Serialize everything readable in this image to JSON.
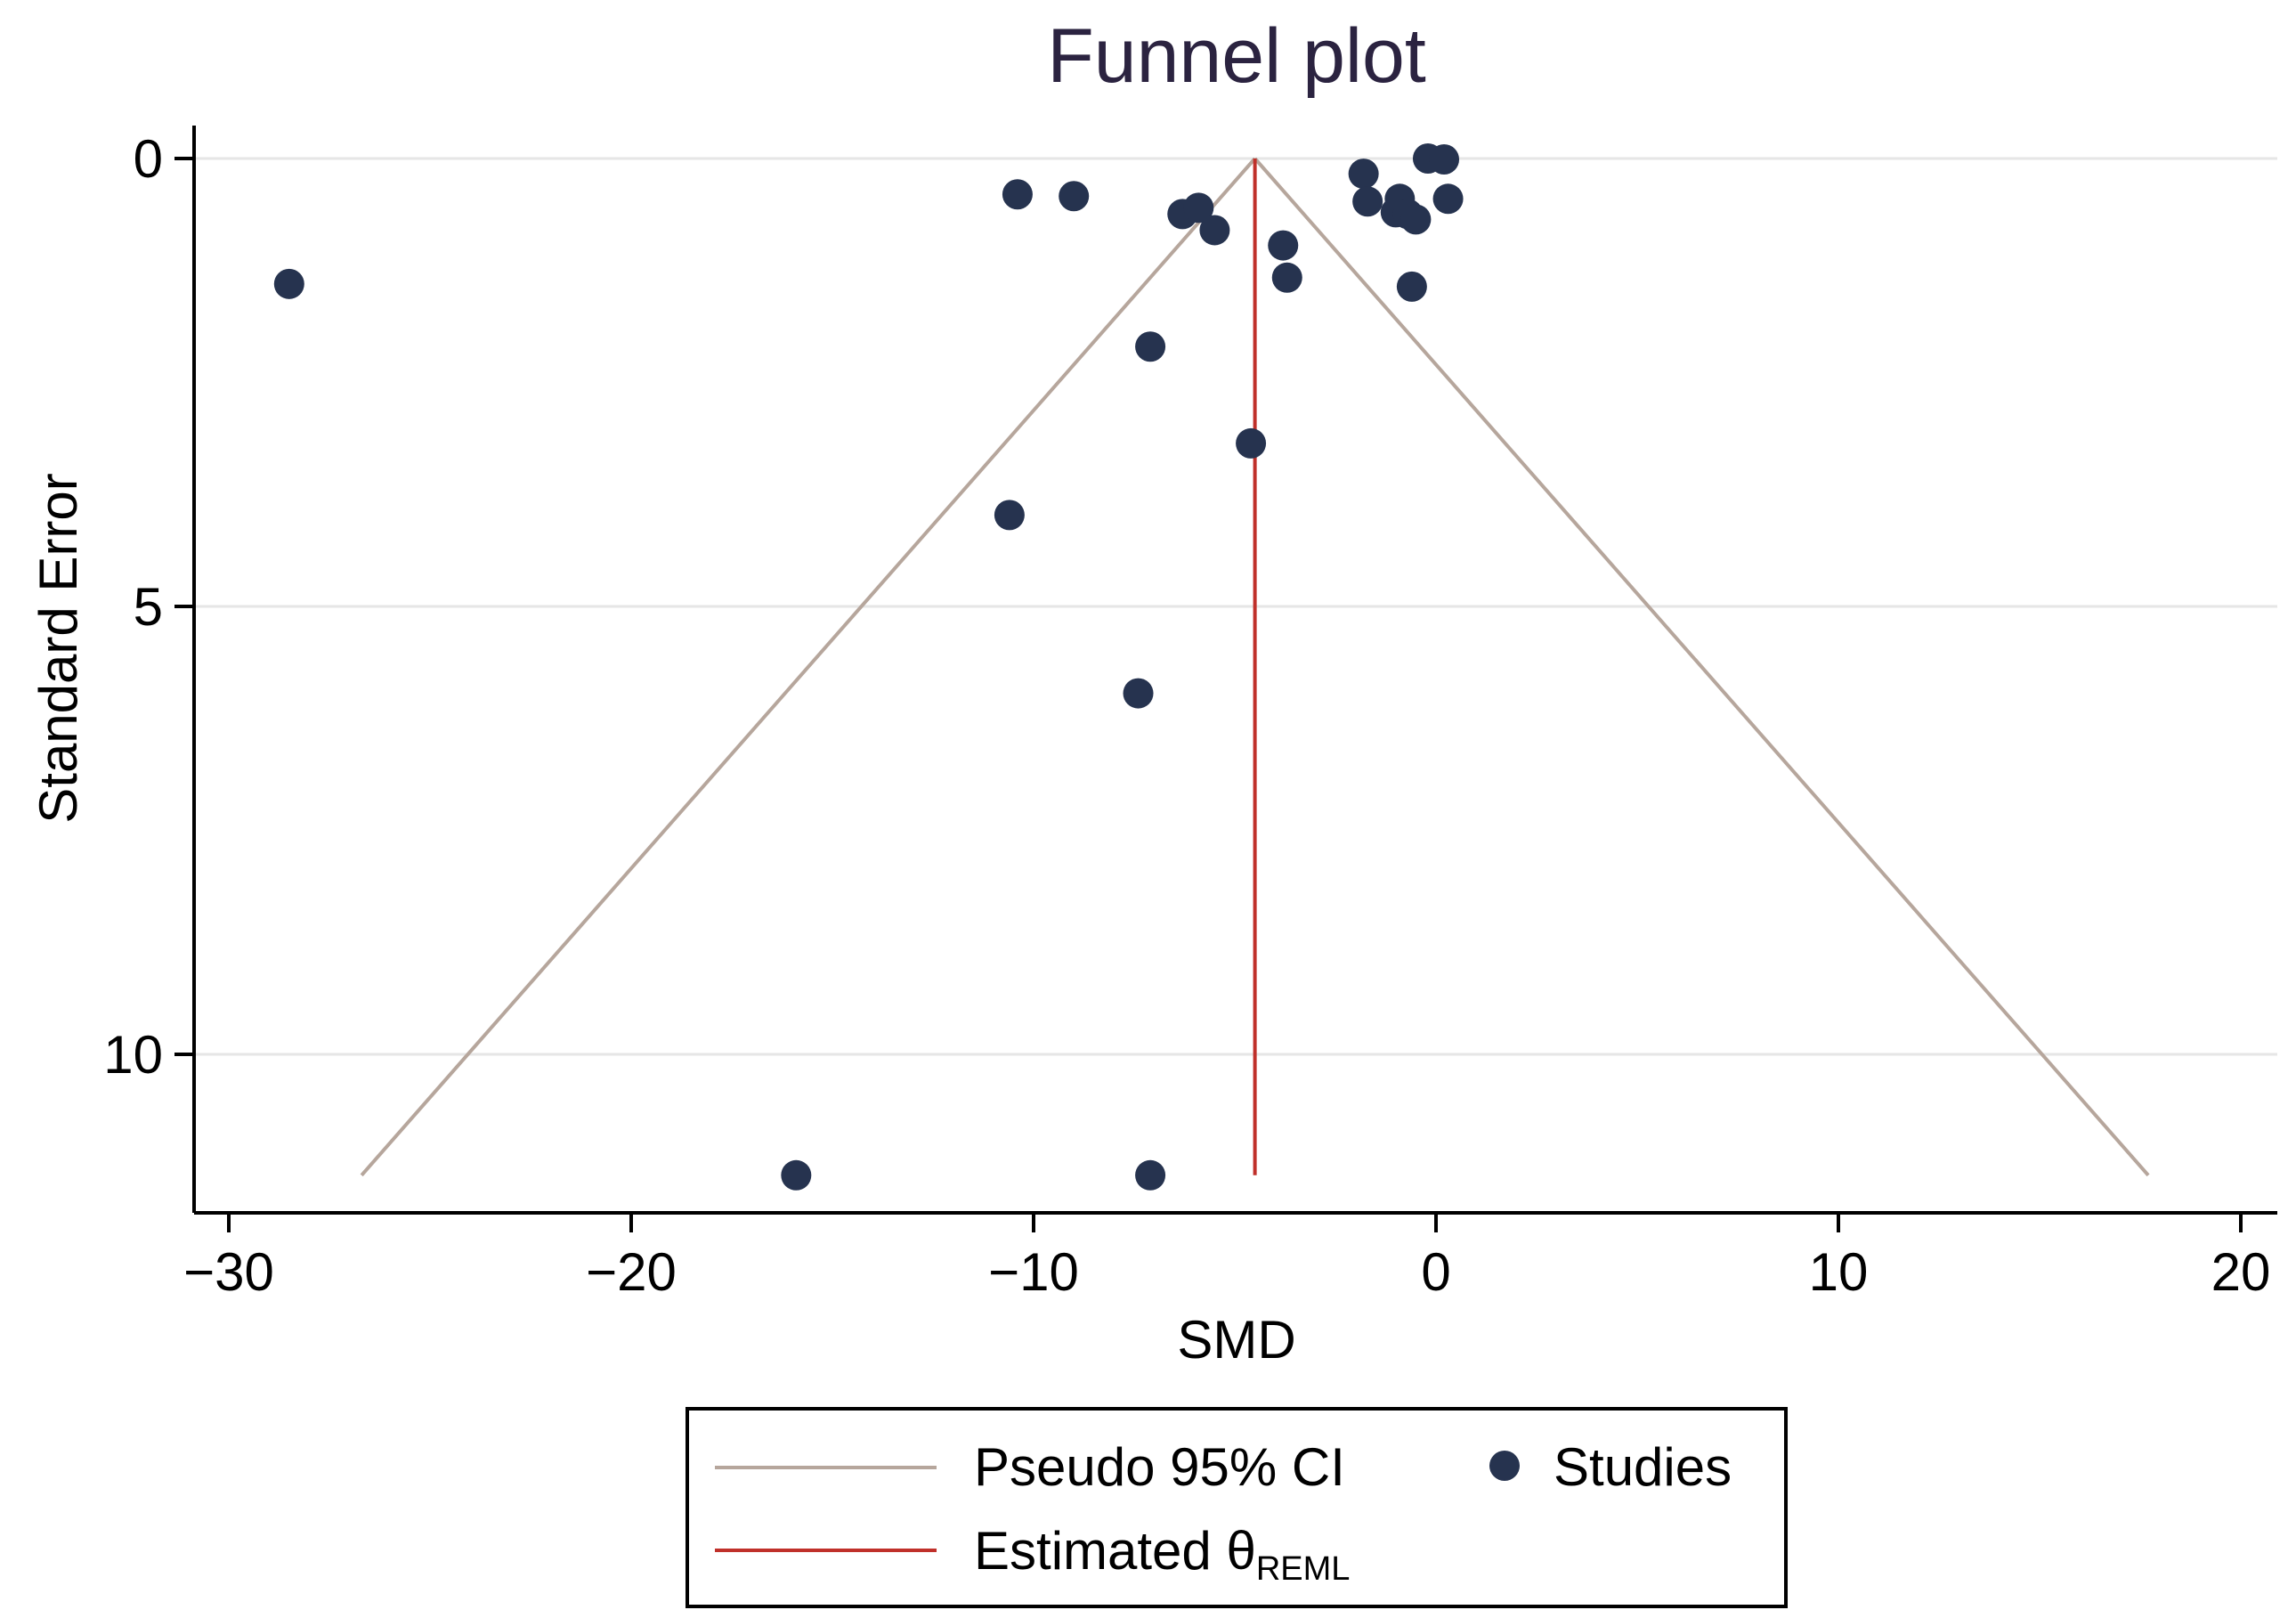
{
  "chart_data": {
    "type": "scatter",
    "title": "Funnel plot",
    "xlabel": "SMD",
    "ylabel": "Standard Error",
    "xlim": [
      -31,
      21
    ],
    "ylim": [
      0,
      11.8
    ],
    "y_reversed": true,
    "x_ticks": [
      -30,
      -20,
      -10,
      0,
      10,
      20
    ],
    "x_tick_labels": [
      "−30",
      "−20",
      "−10",
      "0",
      "10",
      "20"
    ],
    "y_ticks": [
      0,
      5,
      10
    ],
    "y_tick_labels": [
      "0",
      "5",
      "10"
    ],
    "grid": "horizontal",
    "estimate": {
      "name": "Estimated θ",
      "subscript": "REML",
      "x": -4.5,
      "se_range": [
        0,
        11.35
      ],
      "color": "#c0302a"
    },
    "pseudo_ci": {
      "name": "Pseudo 95% CI",
      "apex": [
        -4.5,
        0
      ],
      "left_bottom": [
        -26.7,
        11.35
      ],
      "right_bottom": [
        17.7,
        11.35
      ],
      "color": "#b6a69c"
    },
    "studies": {
      "name": "Studies",
      "color": "#26334f",
      "points": [
        {
          "x": -28.5,
          "y": 1.4
        },
        {
          "x": -10.4,
          "y": 0.4
        },
        {
          "x": -9.0,
          "y": 0.42
        },
        {
          "x": -6.3,
          "y": 0.62
        },
        {
          "x": -5.9,
          "y": 0.55
        },
        {
          "x": -5.5,
          "y": 0.8
        },
        {
          "x": -3.8,
          "y": 0.97
        },
        {
          "x": -3.7,
          "y": 1.33
        },
        {
          "x": -1.8,
          "y": 0.17
        },
        {
          "x": -1.7,
          "y": 0.48
        },
        {
          "x": -1.0,
          "y": 0.6
        },
        {
          "x": -0.9,
          "y": 0.45
        },
        {
          "x": -0.7,
          "y": 0.62
        },
        {
          "x": -0.5,
          "y": 0.68
        },
        {
          "x": -0.6,
          "y": 1.43
        },
        {
          "x": -0.2,
          "y": 0.0
        },
        {
          "x": 0.2,
          "y": 0.01
        },
        {
          "x": 0.3,
          "y": 0.45
        },
        {
          "x": -7.1,
          "y": 2.1
        },
        {
          "x": -4.6,
          "y": 3.18
        },
        {
          "x": -10.6,
          "y": 3.98
        },
        {
          "x": -7.4,
          "y": 5.97
        },
        {
          "x": -15.9,
          "y": 11.35
        },
        {
          "x": -7.1,
          "y": 11.35
        }
      ]
    },
    "legend": {
      "position": "bottom",
      "items": [
        {
          "label": "Pseudo 95% CI",
          "marker": "line",
          "color": "#b6a69c"
        },
        {
          "label": "Studies",
          "marker": "dot",
          "color": "#26334f"
        },
        {
          "label": "Estimated θ",
          "subscript": "REML",
          "marker": "line",
          "color": "#c0302a"
        }
      ]
    }
  }
}
